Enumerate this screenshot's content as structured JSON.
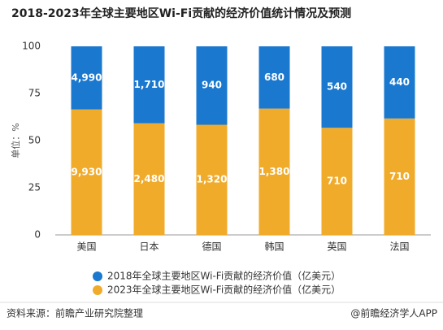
{
  "chart_data": {
    "type": "bar",
    "stacked": "percent",
    "title": "2018-2023年全球主要地区Wi-Fi贡献的经济价值统计情况及预测",
    "y_label": "单位：%",
    "categories": [
      "美国",
      "日本",
      "德国",
      "韩国",
      "英国",
      "法国"
    ],
    "series": [
      {
        "name": "2018年全球主要地区Wi-Fi贡献的经济价值（亿美元）",
        "color": "#1a78cf",
        "values": [
          4990,
          1710,
          940,
          680,
          540,
          440
        ],
        "value_labels": [
          "4,990",
          "1,710",
          "940",
          "680",
          "540",
          "440"
        ]
      },
      {
        "name": "2023年全球主要地区Wi-Fi贡献的经济价值（亿美元）",
        "color": "#f0ab2b",
        "values": [
          9930,
          2480,
          1320,
          1380,
          710,
          710
        ],
        "value_labels": [
          "9,930",
          "2,480",
          "1,320",
          "1,380",
          "710",
          "710"
        ]
      }
    ],
    "ylim": [
      0,
      100
    ],
    "yticks": [
      0,
      25,
      50,
      75,
      100
    ],
    "source": "资料来源：前瞻产业研究院整理",
    "credit": "@前瞻经济学人APP"
  }
}
